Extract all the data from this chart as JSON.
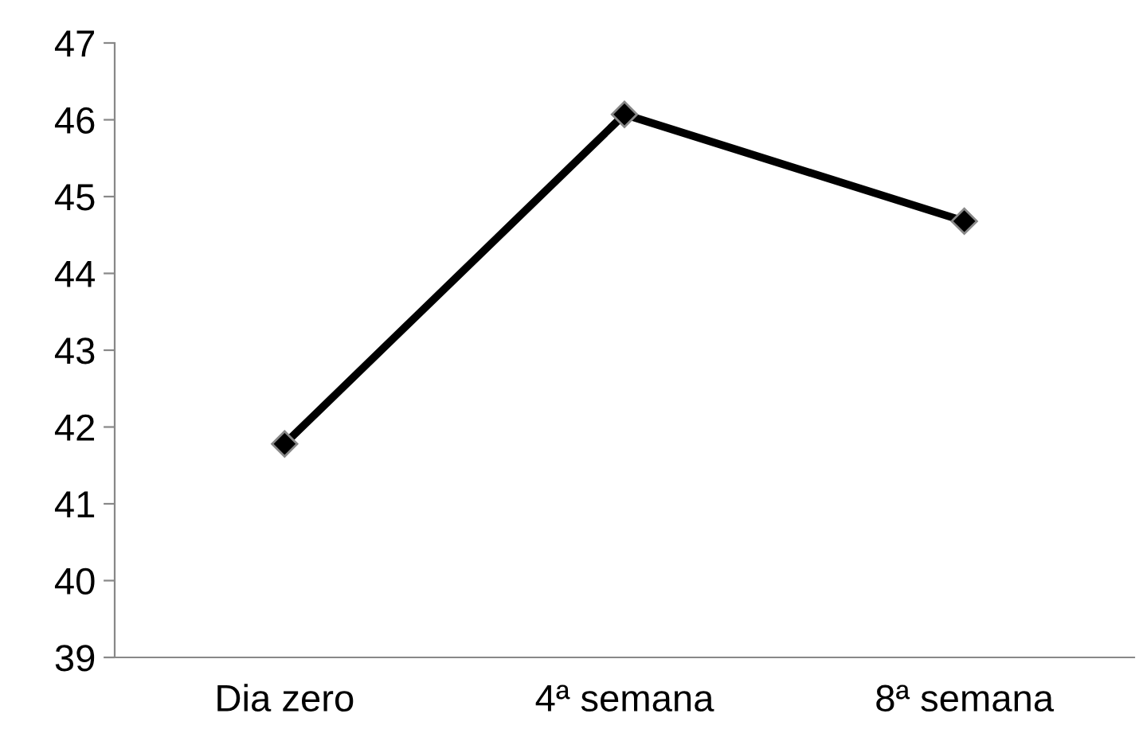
{
  "chart_data": {
    "type": "line",
    "categories": [
      "Dia zero",
      "4ª semana",
      "8ª semana"
    ],
    "series": [
      {
        "color": "#000000",
        "values": [
          41.78,
          46.07,
          44.68
        ]
      }
    ],
    "ylim": [
      39,
      47
    ],
    "yticks": [
      39,
      40,
      41,
      42,
      43,
      44,
      45,
      46,
      47
    ],
    "grid": false,
    "legend": false,
    "marker": "diamond",
    "line_style": "solid"
  }
}
